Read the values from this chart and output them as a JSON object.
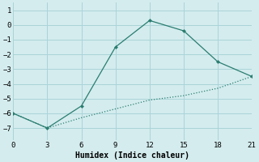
{
  "xlabel": "Humidex (Indice chaleur)",
  "line1_x": [
    0,
    3,
    6,
    9,
    12,
    15,
    18,
    21
  ],
  "line1_y": [
    -6.0,
    -7.0,
    -5.5,
    -1.5,
    0.3,
    -0.4,
    -2.5,
    -3.5
  ],
  "line2_x": [
    0,
    3,
    6,
    9,
    12,
    15,
    18,
    21
  ],
  "line2_y": [
    -6.0,
    -7.0,
    -6.3,
    -5.7,
    -5.1,
    -4.8,
    -4.3,
    -3.5
  ],
  "line_color": "#2a7d70",
  "bg_color": "#d4ecee",
  "grid_color": "#aad4d8",
  "xlim": [
    0,
    21
  ],
  "ylim": [
    -7.8,
    1.5
  ],
  "xticks": [
    0,
    3,
    6,
    9,
    12,
    15,
    18,
    21
  ],
  "yticks": [
    -7,
    -6,
    -5,
    -4,
    -3,
    -2,
    -1,
    0,
    1
  ]
}
